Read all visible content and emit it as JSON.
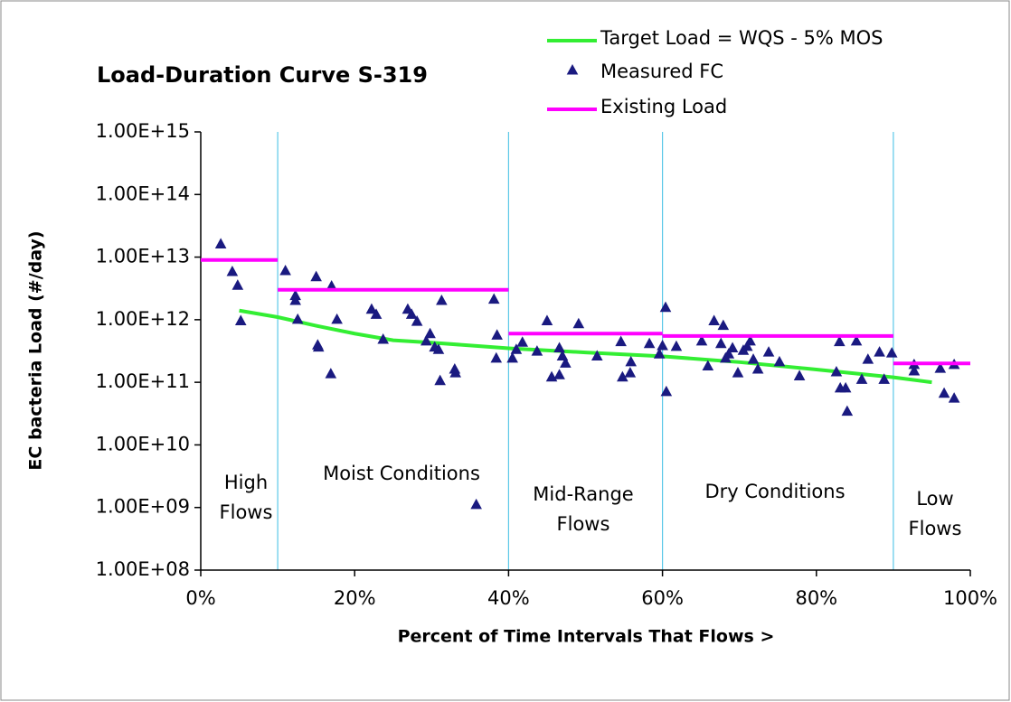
{
  "chart_data": {
    "type": "scatter",
    "title": "Load-Duration Curve S-319",
    "x_label": "Percent of Time Intervals That Flows >",
    "y_label": "EC bacteria Load (#/day)",
    "xlim": [
      0,
      100
    ],
    "xticks": [
      {
        "value": 0,
        "label": "0%"
      },
      {
        "value": 20,
        "label": "20%"
      },
      {
        "value": 40,
        "label": "40%"
      },
      {
        "value": 60,
        "label": "60%"
      },
      {
        "value": 80,
        "label": "80%"
      },
      {
        "value": 100,
        "label": "100%"
      }
    ],
    "ylim": [
      100000000.0,
      1000000000000000.0
    ],
    "yscale": "log",
    "yticks": [
      {
        "value": 1000000000000000.0,
        "label": "1.00E+15"
      },
      {
        "value": 100000000000000.0,
        "label": "1.00E+14"
      },
      {
        "value": 10000000000000.0,
        "label": "1.00E+13"
      },
      {
        "value": 1000000000000.0,
        "label": "1.00E+12"
      },
      {
        "value": 100000000000.0,
        "label": "1.00E+11"
      },
      {
        "value": 10000000000.0,
        "label": "1.00E+10"
      },
      {
        "value": 1000000000.0,
        "label": "1.00E+09"
      },
      {
        "value": 100000000.0,
        "label": "1.00E+08"
      }
    ],
    "dividers": [
      10,
      40,
      60,
      90
    ],
    "divider_color": "#5bc8e8",
    "annotations": [
      {
        "lines": [
          "High",
          "Flows"
        ]
      },
      {
        "lines": [
          "Moist Conditions"
        ]
      },
      {
        "lines": [
          "Mid-Range",
          "Flows"
        ]
      },
      {
        "lines": [
          "Dry Conditions"
        ]
      },
      {
        "lines": [
          "Low",
          "Flows"
        ]
      }
    ],
    "series": [
      {
        "name": "Target Load = WQS - 5% MOS",
        "type": "line",
        "color": "#33ee33",
        "x": [
          5,
          10,
          15,
          20,
          25,
          30,
          40,
          50,
          60,
          70,
          80,
          90,
          95
        ],
        "values": [
          1400000000000.0,
          1100000000000.0,
          800000000000.0,
          600000000000.0,
          470000000000.0,
          430000000000.0,
          350000000000.0,
          300000000000.0,
          260000000000.0,
          210000000000.0,
          160000000000.0,
          120000000000.0,
          100000000000.0
        ]
      },
      {
        "name": "Measured FC",
        "type": "scatter",
        "color": "#1a1a80",
        "x": [
          2.6,
          4.1,
          4.8,
          5.2,
          11.0,
          12.3,
          12.3,
          12.6,
          15.0,
          15.2,
          15.3,
          17.0,
          16.9,
          17.7,
          22.2,
          22.8,
          23.7,
          26.9,
          27.4,
          28.1,
          29.3,
          29.8,
          30.4,
          30.9,
          31.3,
          31.1,
          33.0,
          33.1,
          35.8,
          38.1,
          38.5,
          38.4,
          40.5,
          41.0,
          41.8,
          43.7,
          45.0,
          45.6,
          46.6,
          46.6,
          47.0,
          47.4,
          49.1,
          51.5,
          54.6,
          54.8,
          55.8,
          55.9,
          58.3,
          59.6,
          60.0,
          60.4,
          60.5,
          61.8,
          65.1,
          65.9,
          66.7,
          67.6,
          67.9,
          68.2,
          68.6,
          69.1,
          69.8,
          70.5,
          71.0,
          71.4,
          71.8,
          72.4,
          73.8,
          75.2,
          77.8,
          82.6,
          83.1,
          83.8,
          84.0,
          83.0,
          85.2,
          85.9,
          86.7,
          88.2,
          88.8,
          89.8,
          92.7,
          92.7,
          96.1,
          96.6,
          97.9,
          97.9
        ],
        "values": [
          16000000000000.0,
          5800000000000.0,
          3500000000000.0,
          950000000000.0,
          6000000000000.0,
          2400000000000.0,
          2000000000000.0,
          1000000000000.0,
          4800000000000.0,
          390000000000.0,
          360000000000.0,
          3400000000000.0,
          135000000000.0,
          1000000000000.0,
          1450000000000.0,
          1200000000000.0,
          480000000000.0,
          1450000000000.0,
          1200000000000.0,
          930000000000.0,
          450000000000.0,
          590000000000.0,
          360000000000.0,
          330000000000.0,
          2000000000000.0,
          105000000000.0,
          160000000000.0,
          140000000000.0,
          1100000000.0,
          2100000000000.0,
          560000000000.0,
          240000000000.0,
          240000000000.0,
          330000000000.0,
          430000000000.0,
          310000000000.0,
          950000000000.0,
          120000000000.0,
          130000000000.0,
          350000000000.0,
          260000000000.0,
          200000000000.0,
          850000000000.0,
          260000000000.0,
          440000000000.0,
          120000000000.0,
          140000000000.0,
          210000000000.0,
          410000000000.0,
          280000000000.0,
          380000000000.0,
          1550000000000.0,
          70000000000.0,
          370000000000.0,
          450000000000.0,
          180000000000.0,
          950000000000.0,
          410000000000.0,
          800000000000.0,
          240000000000.0,
          280000000000.0,
          350000000000.0,
          140000000000.0,
          320000000000.0,
          370000000000.0,
          450000000000.0,
          230000000000.0,
          160000000000.0,
          300000000000.0,
          210000000000.0,
          125000000000.0,
          145000000000.0,
          80000000000.0,
          80000000000.0,
          34000000000.0,
          440000000000.0,
          450000000000.0,
          110000000000.0,
          230000000000.0,
          300000000000.0,
          110000000000.0,
          290000000000.0,
          190000000000.0,
          150000000000.0,
          165000000000.0,
          66000000000.0,
          190000000000.0,
          55000000000.0
        ]
      },
      {
        "name": "Existing Load",
        "type": "line",
        "color": "#ff00ff",
        "x": [
          0,
          10,
          10,
          10,
          40,
          40,
          40,
          60,
          60,
          60,
          90,
          90,
          90,
          100
        ],
        "values": [
          9000000000000.0,
          9000000000000.0,
          null,
          3000000000000.0,
          3000000000000.0,
          null,
          600000000000.0,
          600000000000.0,
          null,
          550000000000.0,
          550000000000.0,
          null,
          200000000000.0,
          200000000000.0
        ]
      }
    ]
  }
}
